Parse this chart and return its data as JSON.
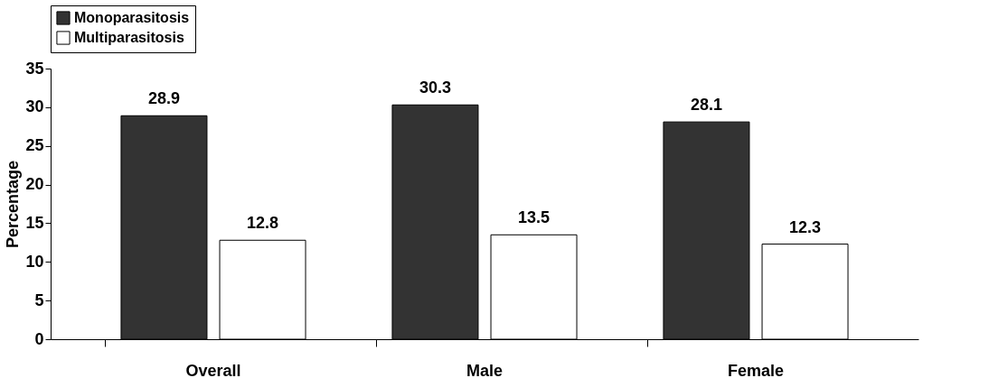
{
  "chart_data": {
    "type": "bar",
    "ylabel": "Percentage",
    "categories": [
      "Overall",
      "Male",
      "Female"
    ],
    "series": [
      {
        "name": "Monoparasitosis",
        "color": "#333333",
        "values": [
          28.9,
          30.3,
          28.1
        ]
      },
      {
        "name": "Multiparasitosis",
        "color": "#ffffff",
        "values": [
          12.8,
          13.5,
          12.3
        ]
      }
    ],
    "ylim": [
      0,
      35
    ],
    "yticks": [
      0,
      5,
      10,
      15,
      20,
      25,
      30,
      35
    ],
    "data_labels": true,
    "legend": "top",
    "grid": false
  }
}
